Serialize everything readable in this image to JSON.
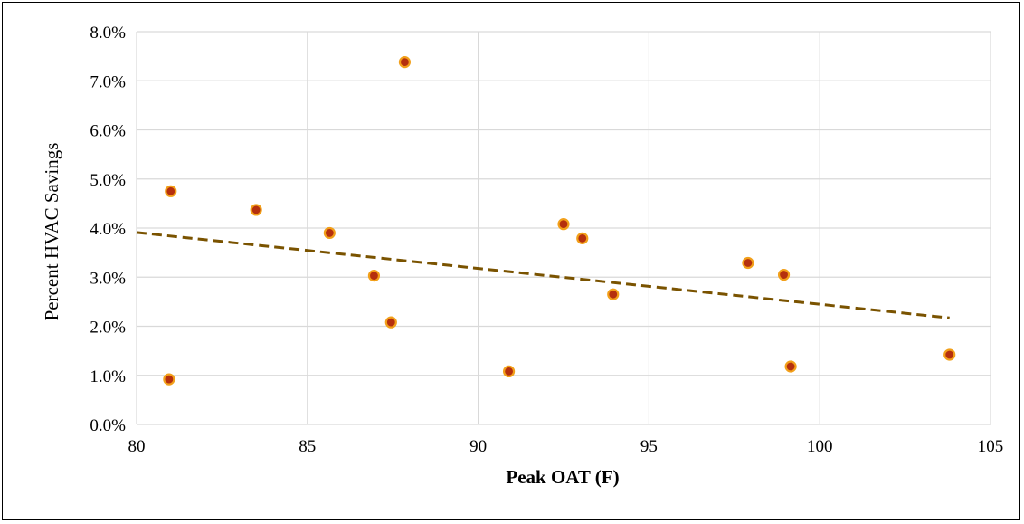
{
  "chart_data": {
    "type": "scatter",
    "title": "",
    "xlabel": "Peak OAT (F)",
    "ylabel": "Percent HVAC Savings",
    "xlim": [
      80,
      105
    ],
    "ylim": [
      0.0,
      8.0
    ],
    "x_ticks": [
      80,
      85,
      90,
      95,
      100,
      105
    ],
    "y_ticks": [
      0.0,
      1.0,
      2.0,
      3.0,
      4.0,
      5.0,
      6.0,
      7.0,
      8.0
    ],
    "y_tick_format": "percent_1dp",
    "grid": true,
    "legend": "none",
    "series": [
      {
        "points": [
          {
            "x": 80.95,
            "y": 0.92
          },
          {
            "x": 81.0,
            "y": 4.75
          },
          {
            "x": 83.5,
            "y": 4.37
          },
          {
            "x": 85.65,
            "y": 3.9
          },
          {
            "x": 86.95,
            "y": 3.03
          },
          {
            "x": 87.45,
            "y": 2.08
          },
          {
            "x": 87.85,
            "y": 7.38
          },
          {
            "x": 90.9,
            "y": 1.08
          },
          {
            "x": 92.5,
            "y": 4.08
          },
          {
            "x": 93.05,
            "y": 3.79
          },
          {
            "x": 93.95,
            "y": 2.65
          },
          {
            "x": 97.9,
            "y": 3.29
          },
          {
            "x": 98.95,
            "y": 3.05
          },
          {
            "x": 99.15,
            "y": 1.18
          },
          {
            "x": 103.8,
            "y": 1.42
          }
        ]
      }
    ],
    "trendline": {
      "type": "linear",
      "x_start": 80,
      "y_start": 3.91,
      "x_end": 103.8,
      "y_end": 2.17
    },
    "colors": {
      "marker_fill": "#b5300e",
      "marker_edge": "#f2a01a",
      "trendline": "#7a5300",
      "grid": "#d9d9d9"
    }
  }
}
